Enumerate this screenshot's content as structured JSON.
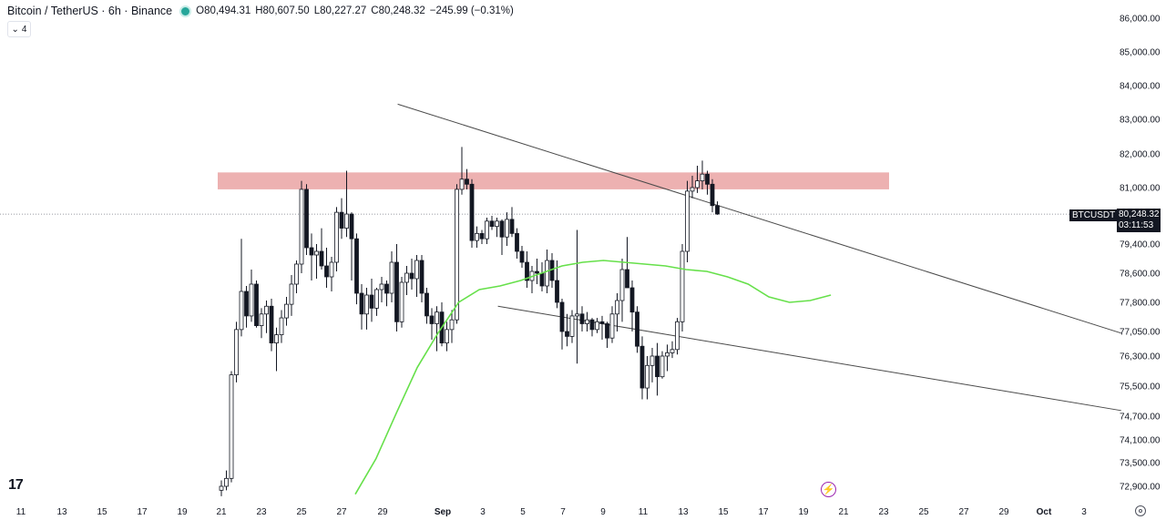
{
  "header": {
    "symbol": "Bitcoin / TetherUS · 6h · Binance",
    "open": "O80,494.31",
    "high": "H80,607.50",
    "low": "L80,227.27",
    "close": "C80,248.32",
    "change": "−245.99 (−0.31%)",
    "indicator_count": "4"
  },
  "price_tag": {
    "symbol": "BTCUSDT",
    "last_price": "80,248.32",
    "countdown": "03:11:53"
  },
  "logo_text": "17",
  "chart_data": {
    "type": "candlestick",
    "price_axis_labels": [
      "86,000.00",
      "85,000.00",
      "84,000.00",
      "83,000.00",
      "82,000.00",
      "81,000.00",
      "79,400.00",
      "78,600.00",
      "77,800.00",
      "77,050.00",
      "76,300.00",
      "75,500.00",
      "74,700.00",
      "74,100.00",
      "73,500.00",
      "72,900.00"
    ],
    "time_axis_labels": [
      "11",
      "13",
      "15",
      "17",
      "19",
      "21",
      "23",
      "25",
      "27",
      "29",
      "Sep",
      "3",
      "5",
      "7",
      "9",
      "11",
      "13",
      "15",
      "17",
      "19",
      "21",
      "23",
      "25",
      "27",
      "29",
      "Oct",
      "3"
    ],
    "resistance_zone": {
      "low": 80950,
      "high": 81450
    },
    "last_price_value": 80248.32,
    "ylim": [
      72700,
      86300
    ],
    "colors": {
      "up": "#ffffff",
      "down": "#131722",
      "ma": "#66e04a",
      "zone": "#eba9a9",
      "trendline": "#4a4a4a"
    },
    "moving_average": [
      [
        21,
        72700
      ],
      [
        22,
        73600
      ],
      [
        23,
        74800
      ],
      [
        24,
        76000
      ],
      [
        25,
        77000
      ],
      [
        26,
        77800
      ],
      [
        27,
        78150
      ],
      [
        28,
        78250
      ],
      [
        29,
        78400
      ],
      [
        30,
        78600
      ],
      [
        31,
        78800
      ],
      [
        32,
        78900
      ],
      [
        33,
        78950
      ],
      [
        34,
        78900
      ],
      [
        35,
        78850
      ],
      [
        36,
        78800
      ],
      [
        37,
        78700
      ],
      [
        38,
        78650
      ],
      [
        39,
        78500
      ],
      [
        40,
        78300
      ],
      [
        41,
        77950
      ],
      [
        42,
        77800
      ],
      [
        43,
        77850
      ],
      [
        44,
        78000
      ]
    ],
    "trendlines": [
      {
        "name": "upper",
        "x": [
          8.8,
          44.9
        ],
        "y": [
          83450,
          77000
        ]
      },
      {
        "name": "lower",
        "x": [
          13.8,
          44.9
        ],
        "y": [
          77700,
          74850
        ]
      }
    ],
    "candles_x_unit": "days from Aug 21",
    "candles": [
      [
        0.0,
        72800,
        73050,
        72650,
        72900
      ],
      [
        0.25,
        72900,
        73300,
        72800,
        73100
      ],
      [
        0.5,
        73100,
        75900,
        73000,
        75800
      ],
      [
        0.75,
        75800,
        77300,
        75600,
        77100
      ],
      [
        1.0,
        77100,
        79550,
        76900,
        78100
      ],
      [
        1.25,
        78100,
        78250,
        77150,
        77450
      ],
      [
        1.5,
        77450,
        78700,
        77300,
        78300
      ],
      [
        1.75,
        78300,
        78400,
        77150,
        77200
      ],
      [
        2.0,
        77200,
        77650,
        76850,
        77500
      ],
      [
        2.25,
        77500,
        77850,
        77000,
        77700
      ],
      [
        2.5,
        77700,
        77900,
        76450,
        76700
      ],
      [
        2.75,
        76700,
        77150,
        75900,
        76950
      ],
      [
        3.0,
        76950,
        77600,
        76700,
        77400
      ],
      [
        3.25,
        77400,
        77950,
        77200,
        77750
      ],
      [
        3.5,
        77750,
        78550,
        77450,
        78300
      ],
      [
        3.75,
        78300,
        78950,
        78050,
        78850
      ],
      [
        4.0,
        78850,
        81200,
        78600,
        80950
      ],
      [
        4.25,
        80950,
        81100,
        79100,
        79300
      ],
      [
        4.5,
        79300,
        79700,
        78400,
        79100
      ],
      [
        4.75,
        79100,
        79400,
        78450,
        79200
      ],
      [
        5.0,
        79200,
        79850,
        78700,
        78800
      ],
      [
        5.25,
        78800,
        79300,
        78200,
        78500
      ],
      [
        5.5,
        78500,
        79050,
        78100,
        78900
      ],
      [
        5.75,
        78900,
        80450,
        78650,
        80300
      ],
      [
        6.0,
        80300,
        80700,
        79550,
        79850
      ],
      [
        6.25,
        79850,
        81500,
        79600,
        80250
      ],
      [
        6.5,
        80250,
        80300,
        78400,
        79550
      ],
      [
        6.75,
        79550,
        79700,
        77750,
        78050
      ],
      [
        7.0,
        78050,
        78300,
        77100,
        77500
      ],
      [
        7.25,
        77500,
        78200,
        77100,
        78000
      ],
      [
        7.5,
        78000,
        78450,
        77300,
        77650
      ],
      [
        7.75,
        77650,
        78200,
        77450,
        78150
      ],
      [
        8.0,
        78150,
        78500,
        77800,
        78300
      ],
      [
        8.25,
        78300,
        78400,
        77700,
        78050
      ],
      [
        8.5,
        78050,
        79200,
        77800,
        78900
      ],
      [
        8.75,
        78900,
        79400,
        77050,
        77300
      ],
      [
        9.0,
        77300,
        78500,
        77150,
        78350
      ],
      [
        9.25,
        78350,
        78800,
        78000,
        78600
      ],
      [
        9.5,
        78600,
        79000,
        78150,
        78450
      ],
      [
        9.75,
        78450,
        79100,
        77950,
        78950
      ],
      [
        10.0,
        78950,
        79100,
        77800,
        78050
      ],
      [
        10.25,
        78050,
        78200,
        77250,
        77450
      ],
      [
        10.5,
        77450,
        77650,
        76800,
        77250
      ],
      [
        10.75,
        77250,
        77700,
        76450,
        77550
      ],
      [
        11.0,
        77550,
        77800,
        76600,
        76700
      ],
      [
        11.25,
        76700,
        77300,
        76450,
        77100
      ],
      [
        11.5,
        77100,
        77600,
        76700,
        77350
      ],
      [
        11.75,
        77350,
        81100,
        77250,
        80950
      ],
      [
        12.0,
        80950,
        82200,
        80800,
        81250
      ],
      [
        12.25,
        81250,
        81550,
        80950,
        81100
      ],
      [
        12.5,
        81100,
        81250,
        79300,
        79500
      ],
      [
        12.75,
        79500,
        79900,
        79300,
        79700
      ],
      [
        13.0,
        79700,
        79800,
        79400,
        79550
      ],
      [
        13.25,
        79550,
        80150,
        79400,
        80050
      ],
      [
        13.5,
        80050,
        80200,
        79800,
        79900
      ],
      [
        13.75,
        79900,
        80150,
        79600,
        80050
      ],
      [
        14.0,
        80050,
        80100,
        79100,
        79600
      ],
      [
        14.25,
        79600,
        80300,
        79350,
        80100
      ],
      [
        14.5,
        80100,
        80450,
        79600,
        79700
      ],
      [
        14.75,
        79700,
        79850,
        79000,
        79200
      ],
      [
        15.0,
        79200,
        79350,
        78750,
        78900
      ],
      [
        15.25,
        78900,
        79200,
        78200,
        78400
      ],
      [
        15.5,
        78400,
        78800,
        78050,
        78650
      ],
      [
        15.75,
        78650,
        79000,
        78300,
        78600
      ],
      [
        16.0,
        78600,
        78900,
        78100,
        78250
      ],
      [
        16.25,
        78250,
        79250,
        78050,
        78950
      ],
      [
        16.5,
        78950,
        79150,
        78200,
        78400
      ],
      [
        16.75,
        78400,
        78950,
        77650,
        77800
      ],
      [
        17.0,
        77800,
        77900,
        76500,
        77050
      ],
      [
        17.25,
        77050,
        77500,
        76600,
        76900
      ],
      [
        17.5,
        76900,
        77600,
        76700,
        77450
      ],
      [
        17.75,
        77450,
        79800,
        76100,
        77500
      ],
      [
        18.0,
        77500,
        77700,
        77050,
        77250
      ],
      [
        18.25,
        77250,
        77550,
        77050,
        77350
      ],
      [
        18.5,
        77350,
        77400,
        76900,
        77100
      ],
      [
        18.75,
        77100,
        77400,
        77000,
        77300
      ],
      [
        19.0,
        77300,
        77450,
        76800,
        77250
      ],
      [
        19.25,
        77250,
        77300,
        76550,
        76850
      ],
      [
        19.5,
        76850,
        77700,
        76700,
        77500
      ],
      [
        19.75,
        77500,
        78050,
        77050,
        77850
      ],
      [
        20.0,
        77850,
        79000,
        77300,
        78700
      ],
      [
        20.25,
        78700,
        79600,
        78300,
        78200
      ],
      [
        20.5,
        78200,
        78400,
        77050,
        77550
      ],
      [
        20.75,
        77550,
        77700,
        76400,
        76600
      ],
      [
        21.0,
        76600,
        76900,
        75150,
        75450
      ],
      [
        21.25,
        75450,
        76300,
        75150,
        76050
      ],
      [
        21.5,
        76050,
        76550,
        75600,
        76300
      ],
      [
        21.75,
        76300,
        76700,
        75250,
        75750
      ],
      [
        22.0,
        75750,
        76450,
        75700,
        76300
      ],
      [
        22.25,
        76300,
        76650,
        75900,
        76400
      ],
      [
        22.5,
        76400,
        76750,
        76250,
        76500
      ],
      [
        22.75,
        76500,
        77400,
        76350,
        77300
      ],
      [
        23.0,
        77300,
        79400,
        77050,
        79200
      ],
      [
        23.25,
        79200,
        81200,
        78900,
        80900
      ],
      [
        23.5,
        80900,
        81350,
        80700,
        81000
      ],
      [
        23.75,
        81000,
        81650,
        80850,
        81200
      ],
      [
        24.0,
        81200,
        81800,
        80950,
        81400
      ],
      [
        24.25,
        81400,
        81500,
        80800,
        81100
      ],
      [
        24.5,
        81100,
        81250,
        80300,
        80490
      ],
      [
        24.75,
        80490,
        80610,
        80230,
        80250
      ]
    ]
  }
}
